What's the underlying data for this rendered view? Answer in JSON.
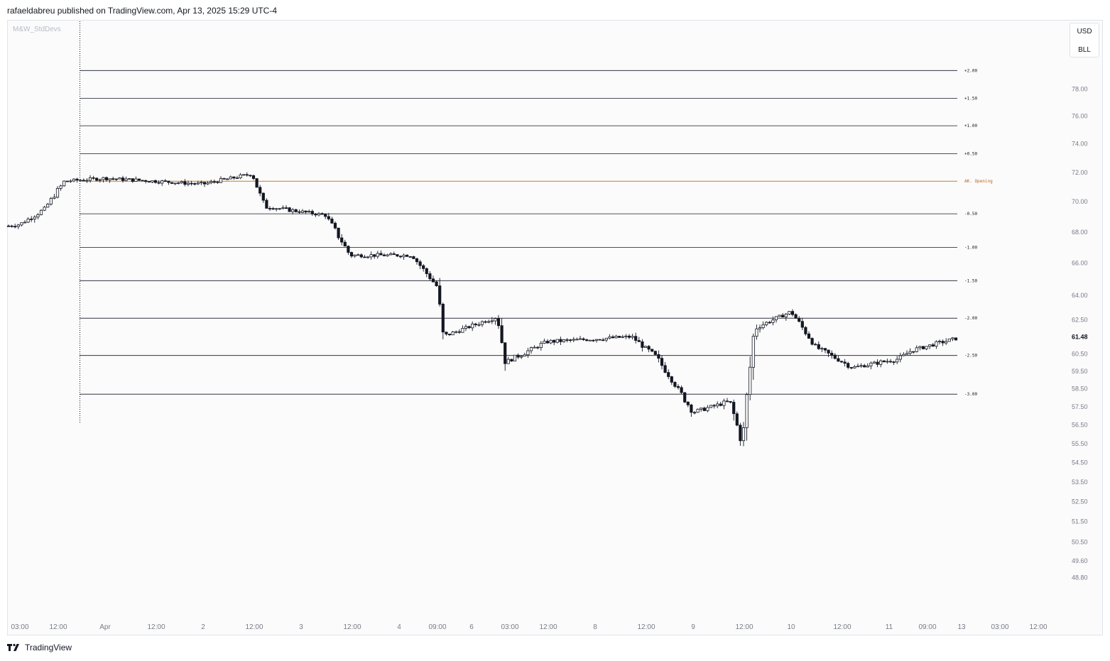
{
  "header": {
    "publisher": "rafaeldabreu published on TradingView.com, Apr 13, 2025 15:29 UTC-4"
  },
  "indicator": {
    "name": "M&W_StdDevs"
  },
  "currency": {
    "code": "USD",
    "unit": "BLL"
  },
  "footer": {
    "brand": "TradingView"
  },
  "colors": {
    "level_line": "#131722",
    "opening_line": "#c77a2a",
    "opening_label": "#b8651c",
    "candle": "#131722"
  },
  "chart_data": {
    "type": "candlestick",
    "title": "",
    "last_price": "61.48",
    "y_axis": {
      "scale": "log",
      "range": [
        48.0,
        81.0
      ],
      "ticks": [
        "78.00",
        "76.00",
        "74.00",
        "72.00",
        "70.00",
        "68.00",
        "66.00",
        "64.00",
        "62.50",
        "60.50",
        "59.50",
        "58.50",
        "57.50",
        "56.50",
        "55.50",
        "54.50",
        "53.50",
        "52.50",
        "51.50",
        "50.50",
        "49.60",
        "48.80"
      ]
    },
    "x_axis": {
      "ticks": [
        "03:00",
        "12:00",
        "Apr",
        "12:00",
        "2",
        "12:00",
        "3",
        "12:00",
        "4",
        "09:00",
        "6",
        "03:00",
        "12:00",
        "8",
        "12:00",
        "9",
        "12:00",
        "10",
        "12:00",
        "11",
        "09:00",
        "13",
        "03:00",
        "12:00"
      ]
    },
    "levels": [
      {
        "label": "+2.00",
        "price": 79.4
      },
      {
        "label": "+1.50",
        "price": 77.3
      },
      {
        "label": "+1.00",
        "price": 75.3
      },
      {
        "label": "+0.50",
        "price": 73.3
      },
      {
        "label": "AK. Opening",
        "price": 71.4,
        "opening": true
      },
      {
        "label": "-0.50",
        "price": 69.2
      },
      {
        "label": "-1.00",
        "price": 67.0
      },
      {
        "label": "-1.50",
        "price": 64.9
      },
      {
        "label": "-2.00",
        "price": 62.6
      },
      {
        "label": "-2.50",
        "price": 60.4
      },
      {
        "label": "-3.00",
        "price": 58.2
      }
    ],
    "key_path": [
      [
        "Mar 31 03:00",
        68.5
      ],
      [
        "Mar 31 09:00",
        69.5
      ],
      [
        "Mar 31 14:00",
        71.4
      ],
      [
        "Apr 1 00:00",
        71.6
      ],
      [
        "Apr 2 00:00",
        71.2
      ],
      [
        "Apr 2 12:00",
        71.9
      ],
      [
        "Apr 2 15:00",
        69.7
      ],
      [
        "Apr 3 06:00",
        69.1
      ],
      [
        "Apr 3 12:00",
        66.5
      ],
      [
        "Apr 4 03:00",
        66.5
      ],
      [
        "Apr 4 09:00",
        64.5
      ],
      [
        "Apr 4 15:00",
        61.5
      ],
      [
        "Apr 6 18:00",
        62.7
      ],
      [
        "Apr 7 00:00",
        60.0
      ],
      [
        "Apr 7 12:00",
        61.2
      ],
      [
        "Apr 8 09:00",
        61.5
      ],
      [
        "Apr 8 15:00",
        60.3
      ],
      [
        "Apr 9 00:00",
        57.2
      ],
      [
        "Apr 9 09:00",
        57.8
      ],
      [
        "Apr 9 12:00",
        55.5
      ],
      [
        "Apr 9 15:00",
        62.0
      ],
      [
        "Apr 10 00:00",
        63.0
      ],
      [
        "Apr 10 06:00",
        60.9
      ],
      [
        "Apr 10 15:00",
        59.7
      ],
      [
        "Apr 11 06:00",
        60.2
      ],
      [
        "Apr 11 15:00",
        60.7
      ],
      [
        "Apr 13 00:00",
        61.48
      ]
    ]
  }
}
